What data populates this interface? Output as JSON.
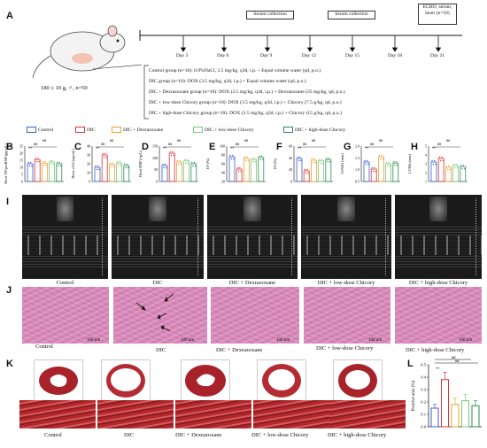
{
  "panels": {
    "A": "A",
    "B": "B",
    "C": "C",
    "D": "D",
    "E": "E",
    "F": "F",
    "G": "G",
    "H": "H",
    "I": "I",
    "J": "J",
    "K": "K",
    "L": "L"
  },
  "timeline": {
    "days": [
      "Day 3",
      "Day 6",
      "Day 9",
      "Day 12",
      "Day 15",
      "Day 18",
      "Day 21"
    ],
    "boxes": [
      "Serum collection",
      "Serum collection",
      "ECHO, serum, heart (n=50)"
    ],
    "mouse_label": "180 ± 10 g, ♂, n=50"
  },
  "groups": [
    "Control group (n=10): 0.9%NaCl, 3.5 mg/kg, q3d, i.p. + Equal volume water (qd, p.o.)",
    "DIC group (n=10): DOX (3.5 mg/kg, q3d, i.p.) + Equal volume water (qd, p.o.)",
    "DIC + Dexrazoxane group (n=10): DOX (3.5 mg/kg, q3d, i.p.) + Dexrazoxane (35 mg/kg, qd, p.o.)",
    "DIC + low-dose Chicory group (n=10): DOX (3.5 mg/kg, q3d, i.p.) + Chicory (7.5 g/kg, qd, p.o.)",
    "DIC + high-dose Chicory group (n=10): DOX (3.5 mg/kg, q3d, i.p.) + Chicory (15 g/kg, qd, p.o.)"
  ],
  "legend": [
    "Control",
    "DIC",
    "DIC + Dexrazoxane",
    "DIC + low-dose Chicory",
    "DIC + high-dose Chicory"
  ],
  "colors": {
    "control": "#3a5fcd",
    "dic": "#e03030",
    "dex": "#f0a030",
    "low": "#7ac87a",
    "high": "#2e8b57"
  },
  "minis": [
    {
      "ylabel": "Heart NT-proBNP (pg/mL)",
      "ticks": [
        "25",
        "20",
        "15",
        "10",
        "5",
        "0"
      ]
    },
    {
      "ylabel": "Heart cTnI (ng/mL)",
      "ticks": [
        "40",
        "30",
        "20",
        "10",
        "0"
      ]
    },
    {
      "ylabel": "Heart BNP (ng/L)",
      "ticks": [
        "150",
        "100",
        "50",
        "0"
      ]
    },
    {
      "ylabel": "EF (%)",
      "ticks": [
        "100",
        "80",
        "60",
        "40",
        "20"
      ]
    },
    {
      "ylabel": "FS (%)",
      "ticks": [
        "60",
        "40",
        "20",
        "0"
      ]
    },
    {
      "ylabel": "LVAWs (mm)",
      "ticks": [
        "2.0",
        "1.5",
        "1.0",
        "0.5"
      ]
    },
    {
      "ylabel": "LVIDs (mm)",
      "ticks": [
        "5",
        "4",
        "3",
        "2",
        "1"
      ]
    }
  ],
  "sig": "##",
  "sig2": "**",
  "echo_captions": [
    "Control",
    "DIC",
    "DIC + Dexrazoxane",
    "DIC + low-dose Chicory",
    "DIC + high-dose Chicory"
  ],
  "he_captions": [
    "Control",
    "DIC",
    "DIC + Dexrazoxane",
    "DIC + low-dose Chicory",
    "DIC + high-dose Chicory"
  ],
  "scale_bar": "100 μm",
  "mass_captions": [
    "Control",
    "DIC",
    "DIC + Dexrazoxane",
    "DIC + low-dose Chicory",
    "DIC + high-dose Chicory"
  ],
  "chart_data": {
    "type": "bar",
    "ylabel": "Positive area (%)",
    "yticks": [
      "0.5",
      "0.4",
      "0.3",
      "0.2",
      "0.1",
      "0.0"
    ],
    "ylim": [
      0,
      0.5
    ],
    "categories": [
      "Control",
      "DIC",
      "DIC + Dexrazoxane",
      "DIC + low-dose Chicory",
      "DIC + high-dose Chicory"
    ],
    "values": [
      0.15,
      0.38,
      0.18,
      0.21,
      0.17
    ]
  }
}
